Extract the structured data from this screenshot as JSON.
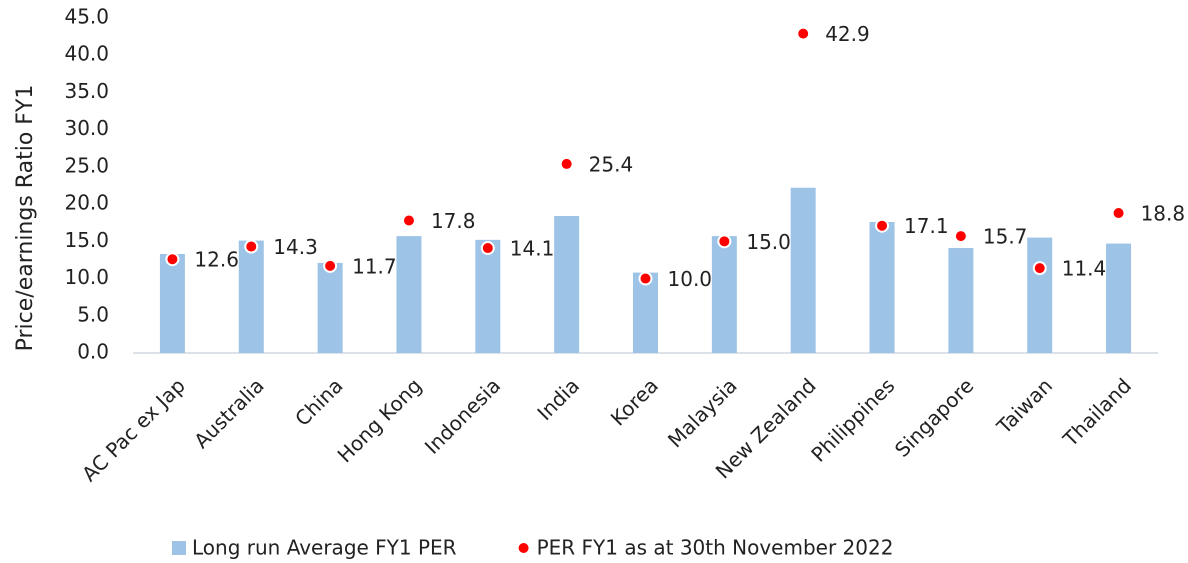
{
  "chart_data": {
    "type": "bar_scatter",
    "y_label": "Price/earnings Ratio FY1",
    "categories": [
      "AC Pac ex Jap",
      "Australia",
      "China",
      "Hong Kong",
      "Indonesia",
      "India",
      "Korea",
      "Malaysia",
      "New Zealand",
      "Philippines",
      "Singapore",
      "Taiwan",
      "Thailand"
    ],
    "series": [
      {
        "name": "Long run Average FY1 PER",
        "color": "#9dc3e6",
        "kind": "bar",
        "values": [
          13.3,
          15.1,
          12.1,
          15.7,
          15.2,
          18.4,
          10.8,
          15.7,
          22.2,
          17.6,
          14.1,
          15.5,
          14.7
        ]
      },
      {
        "name": "PER FY1 as at 30th November 2022",
        "color": "#ff0000",
        "kind": "dot",
        "values": [
          12.6,
          14.3,
          11.7,
          17.8,
          14.1,
          25.4,
          10,
          15,
          42.9,
          17.1,
          15.7,
          11.4,
          18.8
        ],
        "value_labels": [
          "12.6",
          "14.3",
          "11.7",
          "17.8",
          "14.1",
          "25.4",
          "10.0",
          "15.0",
          "42.9",
          "17.1",
          "15.7",
          "11.4",
          "18.8"
        ]
      }
    ],
    "ylim": [
      0,
      45
    ],
    "yticks": [
      {
        "value": 0,
        "label": "0.0"
      },
      {
        "value": 5,
        "label": "5.0"
      },
      {
        "value": 10,
        "label": "10.0"
      },
      {
        "value": 15,
        "label": "15.0"
      },
      {
        "value": 20,
        "label": "20.0"
      },
      {
        "value": 25,
        "label": "25.0"
      },
      {
        "value": 30,
        "label": "30.0"
      },
      {
        "value": 35,
        "label": "35.0"
      },
      {
        "value": 40,
        "label": "40.0"
      },
      {
        "value": 45,
        "label": "45.0"
      }
    ],
    "grid": false
  }
}
